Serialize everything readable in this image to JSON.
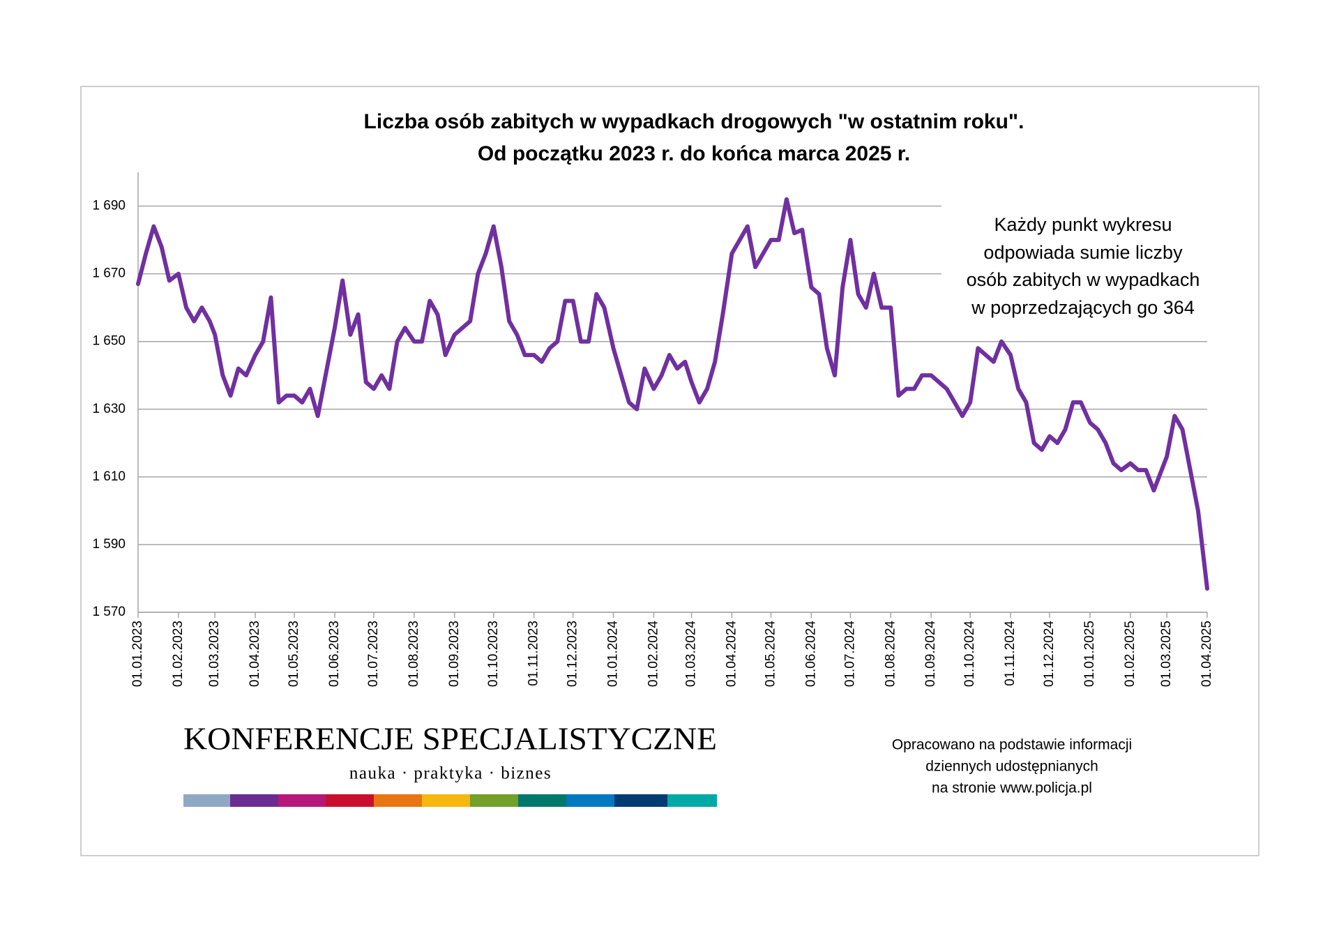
{
  "chart_data": {
    "type": "line",
    "title": [
      "Liczba osób zabitych w wypadkach drogowych \"w ostatnim roku\".",
      "Od początku 2023 r. do końca marca 2025 r."
    ],
    "annotation": [
      "Każdy punkt wykresu",
      "odpowiada sumie liczby",
      "osób zabitych w wypadkach",
      "w poprzedzających go 364"
    ],
    "color": "#7030a0",
    "grid": true,
    "ylim": [
      1570,
      1700
    ],
    "yticks": [
      {
        "value": 1570,
        "label": "1 570"
      },
      {
        "value": 1590,
        "label": "1 590"
      },
      {
        "value": 1610,
        "label": "1 610"
      },
      {
        "value": 1630,
        "label": "1 630"
      },
      {
        "value": 1650,
        "label": "1 650"
      },
      {
        "value": 1670,
        "label": "1 670"
      },
      {
        "value": 1690,
        "label": "1 690"
      }
    ],
    "xlim": [
      "01.01.2023",
      "01.04.2025"
    ],
    "xticks": [
      "01.01.2023",
      "01.02.2023",
      "01.03.2023",
      "01.04.2023",
      "01.05.2023",
      "01.06.2023",
      "01.07.2023",
      "01.08.2023",
      "01.09.2023",
      "01.10.2023",
      "01.11.2023",
      "01.12.2023",
      "01.01.2024",
      "01.02.2024",
      "01.03.2024",
      "01.04.2024",
      "01.05.2024",
      "01.06.2024",
      "01.07.2024",
      "01.08.2024",
      "01.09.2024",
      "01.10.2024",
      "01.11.2024",
      "01.12.2024",
      "01.01.2025",
      "01.02.2025",
      "01.03.2025",
      "01.04.2025"
    ],
    "x": [
      "01.01.2023",
      "07.01.2023",
      "13.01.2023",
      "19.01.2023",
      "25.01.2023",
      "01.02.2023",
      "07.02.2023",
      "13.02.2023",
      "19.02.2023",
      "25.02.2023",
      "01.03.2023",
      "07.03.2023",
      "13.03.2023",
      "19.03.2023",
      "25.03.2023",
      "01.04.2023",
      "07.04.2023",
      "13.04.2023",
      "19.04.2023",
      "25.04.2023",
      "01.05.2023",
      "07.05.2023",
      "13.05.2023",
      "19.05.2023",
      "25.05.2023",
      "01.06.2023",
      "07.06.2023",
      "13.06.2023",
      "19.06.2023",
      "25.06.2023",
      "01.07.2023",
      "07.07.2023",
      "13.07.2023",
      "19.07.2023",
      "25.07.2023",
      "01.08.2023",
      "07.08.2023",
      "13.08.2023",
      "19.08.2023",
      "25.08.2023",
      "01.09.2023",
      "07.09.2023",
      "13.09.2023",
      "19.09.2023",
      "25.09.2023",
      "01.10.2023",
      "07.10.2023",
      "13.10.2023",
      "19.10.2023",
      "25.10.2023",
      "01.11.2023",
      "07.11.2023",
      "13.11.2023",
      "19.11.2023",
      "25.11.2023",
      "01.12.2023",
      "07.12.2023",
      "13.12.2023",
      "19.12.2023",
      "25.12.2023",
      "01.01.2024",
      "07.01.2024",
      "13.01.2024",
      "19.01.2024",
      "25.01.2024",
      "01.02.2024",
      "07.02.2024",
      "13.02.2024",
      "19.02.2024",
      "25.02.2024",
      "01.03.2024",
      "07.03.2024",
      "13.03.2024",
      "19.03.2024",
      "25.03.2024",
      "01.04.2024",
      "07.04.2024",
      "13.04.2024",
      "19.04.2024",
      "25.04.2024",
      "01.05.2024",
      "07.05.2024",
      "13.05.2024",
      "19.05.2024",
      "25.05.2024",
      "01.06.2024",
      "07.06.2024",
      "13.06.2024",
      "19.06.2024",
      "25.06.2024",
      "01.07.2024",
      "07.07.2024",
      "13.07.2024",
      "19.07.2024",
      "25.07.2024",
      "01.08.2024",
      "07.08.2024",
      "13.08.2024",
      "19.08.2024",
      "25.08.2024",
      "01.09.2024",
      "07.09.2024",
      "13.09.2024",
      "19.09.2024",
      "25.09.2024",
      "01.10.2024",
      "07.10.2024",
      "13.10.2024",
      "19.10.2024",
      "25.10.2024",
      "01.11.2024",
      "07.11.2024",
      "13.11.2024",
      "19.11.2024",
      "25.11.2024",
      "01.12.2024",
      "07.12.2024",
      "13.12.2024",
      "19.12.2024",
      "25.12.2024",
      "01.01.2025",
      "07.01.2025",
      "13.01.2025",
      "19.01.2025",
      "25.01.2025",
      "01.02.2025",
      "07.02.2025",
      "13.02.2025",
      "19.02.2025",
      "25.02.2025",
      "01.03.2025",
      "07.03.2025",
      "13.03.2025",
      "19.03.2025",
      "25.03.2025",
      "01.04.2025"
    ],
    "values": [
      1667,
      1676,
      1684,
      1678,
      1668,
      1670,
      1660,
      1656,
      1660,
      1656,
      1652,
      1640,
      1634,
      1642,
      1640,
      1646,
      1650,
      1663,
      1632,
      1634,
      1634,
      1632,
      1636,
      1628,
      1640,
      1654,
      1668,
      1652,
      1658,
      1638,
      1636,
      1640,
      1636,
      1650,
      1654,
      1650,
      1650,
      1662,
      1658,
      1646,
      1652,
      1654,
      1656,
      1670,
      1676,
      1684,
      1672,
      1656,
      1652,
      1646,
      1646,
      1644,
      1648,
      1650,
      1662,
      1662,
      1650,
      1650,
      1664,
      1660,
      1648,
      1640,
      1632,
      1630,
      1642,
      1636,
      1640,
      1646,
      1642,
      1644,
      1638,
      1632,
      1636,
      1644,
      1658,
      1676,
      1680,
      1684,
      1672,
      1676,
      1680,
      1680,
      1692,
      1682,
      1683,
      1666,
      1664,
      1648,
      1640,
      1666,
      1680,
      1664,
      1660,
      1670,
      1660,
      1660,
      1634,
      1636,
      1636,
      1640,
      1640,
      1638,
      1636,
      1632,
      1628,
      1632,
      1648,
      1646,
      1644,
      1650,
      1646,
      1636,
      1632,
      1620,
      1618,
      1622,
      1620,
      1624,
      1632,
      1632,
      1626,
      1624,
      1620,
      1614,
      1612,
      1614,
      1612,
      1612,
      1606,
      1612,
      1616,
      1628,
      1624,
      1612,
      1600,
      1577
    ]
  },
  "logo": {
    "name": "KONFERENCJE SPECJALISTYCZNE",
    "tagline": "nauka · praktyka · biznes"
  },
  "source": [
    "Opracowano na podstawie informacji",
    "dziennych udostępnianych",
    "na stronie www.policja.pl"
  ]
}
